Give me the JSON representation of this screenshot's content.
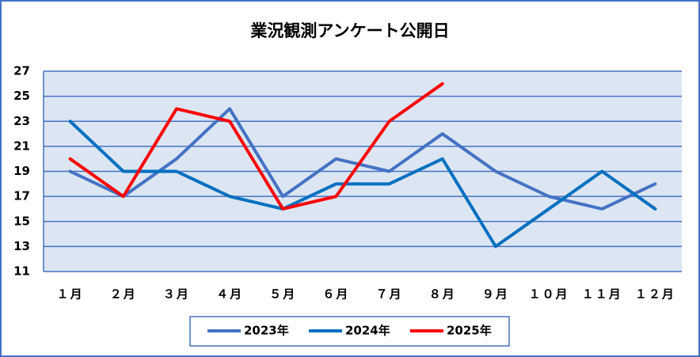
{
  "chart_data": {
    "type": "line",
    "title": "業況観測アンケート公開日",
    "categories": [
      "１月",
      "２月",
      "３月",
      "４月",
      "５月",
      "６月",
      "７月",
      "８月",
      "９月",
      "１０月",
      "１１月",
      "１２月"
    ],
    "series": [
      {
        "name": "2023年",
        "color": "#4472c4",
        "values": [
          19,
          17,
          20,
          24,
          17,
          20,
          19,
          22,
          19,
          17,
          16,
          18
        ]
      },
      {
        "name": "2024年",
        "color": "#0070c0",
        "values": [
          23,
          19,
          19,
          17,
          16,
          18,
          18,
          20,
          13,
          16,
          19,
          16
        ]
      },
      {
        "name": "2025年",
        "color": "#ff0000",
        "values": [
          20,
          17,
          24,
          23,
          16,
          17,
          23,
          26,
          null,
          null,
          null,
          null
        ]
      }
    ],
    "ylim": [
      11,
      27
    ],
    "yticks": [
      11,
      13,
      15,
      17,
      19,
      21,
      23,
      25,
      27
    ],
    "grid": true,
    "legend": "bottom"
  }
}
